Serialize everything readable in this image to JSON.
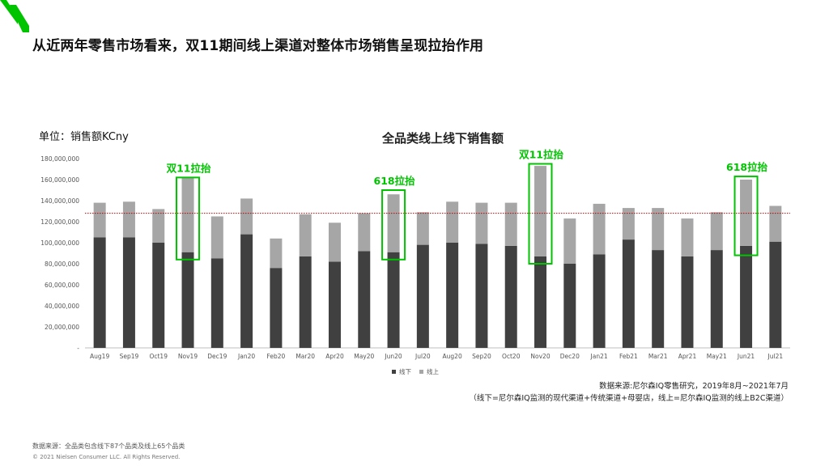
{
  "brand": {
    "accent": "#00c400"
  },
  "headline": "从近两年零售市场看来，双11期间线上渠道对整体市场销售呈现拉抬作用",
  "unit_label": "单位：销售额KCny",
  "chart_data": {
    "type": "bar",
    "stacked": true,
    "title": "全品类线上线下销售额",
    "categories": [
      "Aug19",
      "Sep19",
      "Oct19",
      "Nov19",
      "Dec19",
      "Jan20",
      "Feb20",
      "Mar20",
      "Apr20",
      "May20",
      "Jun20",
      "Jul20",
      "Aug20",
      "Sep20",
      "Oct20",
      "Nov20",
      "Dec20",
      "Jan21",
      "Feb21",
      "Mar21",
      "Apr21",
      "May21",
      "Jun21",
      "Jul21"
    ],
    "series": [
      {
        "name": "线下",
        "color": "#404040",
        "values": [
          105000000,
          105000000,
          100000000,
          91000000,
          85000000,
          108000000,
          76000000,
          87000000,
          82000000,
          92000000,
          91000000,
          98000000,
          100000000,
          99000000,
          97000000,
          87000000,
          80000000,
          89000000,
          103000000,
          93000000,
          87000000,
          93000000,
          97000000,
          101000000
        ]
      },
      {
        "name": "线上",
        "color": "#a6a6a6",
        "values": [
          33000000,
          34000000,
          32000000,
          71000000,
          40000000,
          34000000,
          28000000,
          40000000,
          37000000,
          36000000,
          55000000,
          31000000,
          39000000,
          39000000,
          41000000,
          86000000,
          43000000,
          48000000,
          30000000,
          40000000,
          36000000,
          36000000,
          63000000,
          34000000
        ]
      }
    ],
    "yticks": [
      "-",
      "20,000,000",
      "40,000,000",
      "60,000,000",
      "80,000,000",
      "100,000,000",
      "120,000,000",
      "140,000,000",
      "160,000,000",
      "180,000,000"
    ],
    "ylim": [
      0,
      180000000
    ],
    "reference_line": {
      "value": 128000000,
      "color": "#c00000",
      "style": "dotted"
    },
    "legend": {
      "position": "bottom",
      "entries": [
        "线下",
        "线上"
      ]
    },
    "annotations": [
      {
        "label": "双11拉抬",
        "category": "Nov19",
        "from": 84000000,
        "to": 162000000
      },
      {
        "label": "618拉抬",
        "category": "Jun20",
        "from": 84000000,
        "to": 150000000
      },
      {
        "label": "双11拉抬",
        "category": "Nov20",
        "from": 80000000,
        "to": 175000000
      },
      {
        "label": "618拉抬",
        "category": "Jun21",
        "from": 88000000,
        "to": 163000000
      }
    ]
  },
  "source_line1": "数据来源:尼尔森IQ零售研究，2019年8月~2021年7月",
  "source_line2": "（线下=尼尔森IQ监测的现代渠道+传统渠道+母婴店，线上=尼尔森IQ监测的线上B2C渠道）",
  "footnote": "数据来源：全品类包含线下87个品类及线上65个品类",
  "copyright": "© 2021 Nielsen Consumer LLC. All Rights Reserved."
}
